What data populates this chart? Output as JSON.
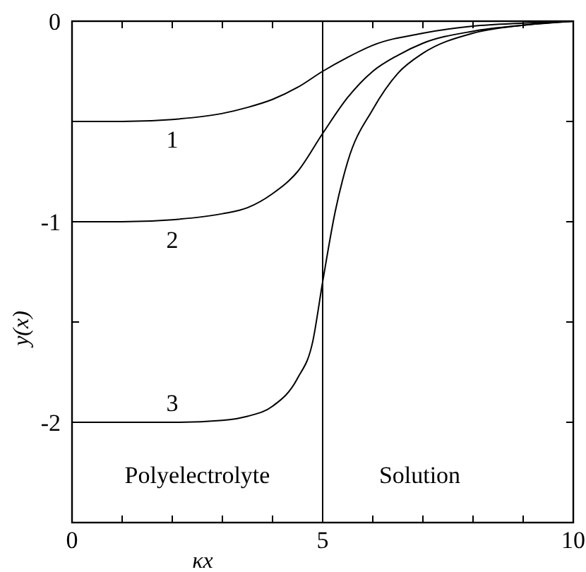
{
  "chart_data": {
    "type": "line",
    "xlabel": "κx",
    "ylabel": "y(x)",
    "xlim": [
      0,
      10
    ],
    "ylim": [
      -2.5,
      0
    ],
    "xticks": [
      0,
      {
        "value": 1,
        "label": null
      },
      {
        "value": 2,
        "label": null
      },
      {
        "value": 3,
        "label": null
      },
      {
        "value": 4,
        "label": null
      },
      5,
      {
        "value": 6,
        "label": null
      },
      {
        "value": 7,
        "label": null
      },
      {
        "value": 8,
        "label": null
      },
      {
        "value": 9,
        "label": null
      },
      10
    ],
    "yticks": [
      {
        "value": -2.5,
        "label": null
      },
      -2,
      {
        "value": -1.5,
        "label": null
      },
      -1,
      {
        "value": -0.5,
        "label": null
      },
      0
    ],
    "grid": false,
    "marker": "none",
    "line_style": "solid",
    "series": [
      {
        "name": "1",
        "color": "#000000",
        "x": [
          0,
          1,
          2,
          3,
          3.5,
          4,
          4.5,
          5,
          5.5,
          6,
          7,
          8,
          9,
          10
        ],
        "values": [
          -0.5,
          -0.5,
          -0.49,
          -0.46,
          -0.43,
          -0.39,
          -0.33,
          -0.25,
          -0.18,
          -0.12,
          -0.06,
          -0.025,
          -0.01,
          0
        ]
      },
      {
        "name": "2",
        "color": "#000000",
        "x": [
          0,
          1,
          2,
          3,
          3.5,
          4,
          4.5,
          5,
          5.5,
          6,
          6.5,
          7,
          8,
          9,
          10
        ],
        "values": [
          -1,
          -1,
          -0.99,
          -0.96,
          -0.93,
          -0.86,
          -0.75,
          -0.56,
          -0.38,
          -0.25,
          -0.17,
          -0.11,
          -0.05,
          -0.02,
          0
        ]
      },
      {
        "name": "3",
        "color": "#000000",
        "x": [
          0,
          1,
          2,
          3,
          3.5,
          4,
          4.5,
          4.8,
          5,
          5.25,
          5.5,
          6,
          6.5,
          7,
          8,
          9,
          10
        ],
        "values": [
          -2,
          -2,
          -2,
          -1.99,
          -1.97,
          -1.92,
          -1.78,
          -1.6,
          -1.3,
          -0.95,
          -0.7,
          -0.44,
          -0.26,
          -0.16,
          -0.06,
          -0.02,
          0
        ]
      }
    ],
    "ref_lines": [
      {
        "axis": "x",
        "value": 5,
        "color": "#000000"
      }
    ],
    "annotations": [
      "Polyelectrolyte",
      "Solution"
    ]
  }
}
